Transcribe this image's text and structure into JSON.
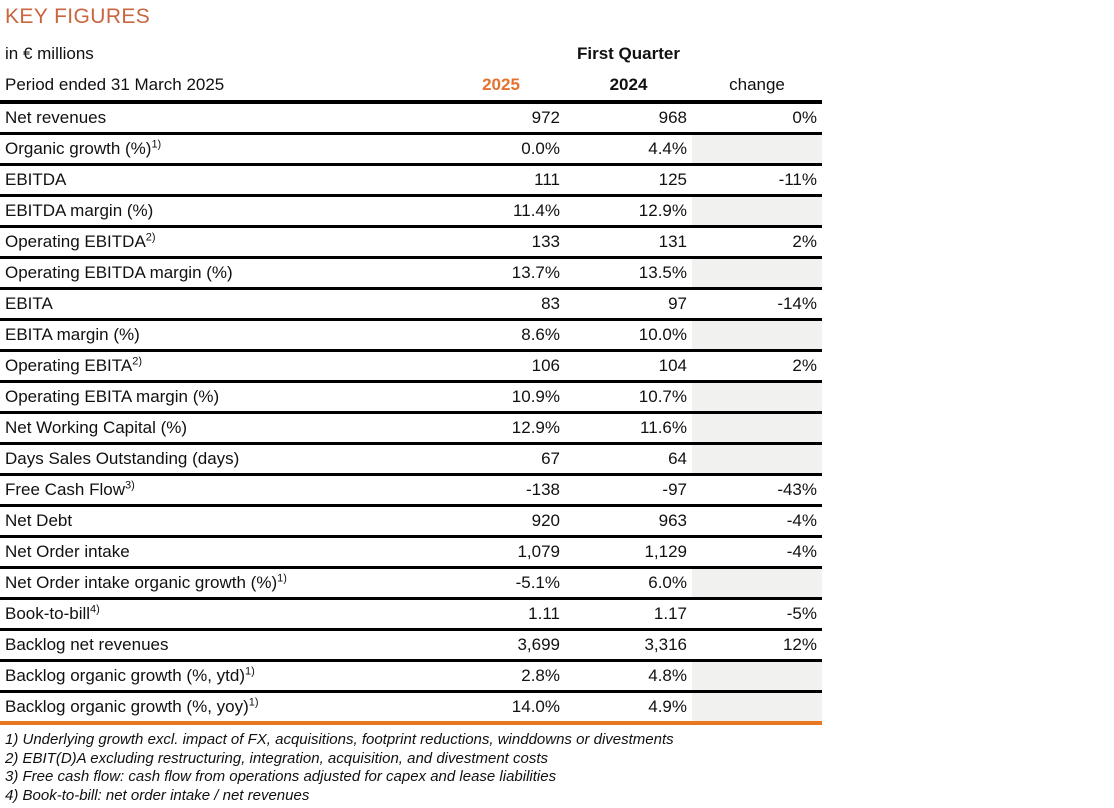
{
  "title": "KEY FIGURES",
  "unit_label": "in € millions",
  "period_label": "Period ended 31 March 2025",
  "quarter_label": "First Quarter",
  "columns": {
    "y2025": "2025",
    "y2024": "2024",
    "change": "change"
  },
  "colors": {
    "title": "#C9653F",
    "year_2025": "#E4722E",
    "accent_line": "#E87722",
    "shaded_cell": "#F1F1EF",
    "text": "#111111",
    "row_border": "#000000"
  },
  "table": {
    "rows": [
      {
        "label": "Net revenues",
        "sup": "",
        "v2025": "972",
        "v2024": "968",
        "change": "0%",
        "shaded": false
      },
      {
        "label": "Organic growth (%)",
        "sup": "1)",
        "v2025": "0.0%",
        "v2024": "4.4%",
        "change": "",
        "shaded": true
      },
      {
        "label": "EBITDA",
        "sup": "",
        "v2025": "111",
        "v2024": "125",
        "change": "-11%",
        "shaded": false
      },
      {
        "label": "EBITDA margin (%)",
        "sup": "",
        "v2025": "11.4%",
        "v2024": "12.9%",
        "change": "",
        "shaded": true
      },
      {
        "label": "Operating EBITDA",
        "sup": "2)",
        "v2025": "133",
        "v2024": "131",
        "change": "2%",
        "shaded": false
      },
      {
        "label": "Operating EBITDA margin (%)",
        "sup": "",
        "v2025": "13.7%",
        "v2024": "13.5%",
        "change": "",
        "shaded": true
      },
      {
        "label": "EBITA",
        "sup": "",
        "v2025": "83",
        "v2024": "97",
        "change": "-14%",
        "shaded": false
      },
      {
        "label": "EBITA margin (%)",
        "sup": "",
        "v2025": "8.6%",
        "v2024": "10.0%",
        "change": "",
        "shaded": true
      },
      {
        "label": "Operating EBITA",
        "sup": "2)",
        "v2025": "106",
        "v2024": "104",
        "change": "2%",
        "shaded": false
      },
      {
        "label": "Operating EBITA margin (%)",
        "sup": "",
        "v2025": "10.9%",
        "v2024": "10.7%",
        "change": "",
        "shaded": true
      },
      {
        "label": "Net Working Capital (%)",
        "sup": "",
        "v2025": "12.9%",
        "v2024": "11.6%",
        "change": "",
        "shaded": true
      },
      {
        "label": "Days Sales Outstanding (days)",
        "sup": "",
        "v2025": "67",
        "v2024": "64",
        "change": "",
        "shaded": true
      },
      {
        "label": "Free Cash Flow",
        "sup": "3)",
        "v2025": "-138",
        "v2024": "-97",
        "change": "-43%",
        "shaded": false
      },
      {
        "label": "Net Debt",
        "sup": "",
        "v2025": "920",
        "v2024": "963",
        "change": "-4%",
        "shaded": false
      },
      {
        "label": "Net Order intake",
        "sup": "",
        "v2025": "1,079",
        "v2024": "1,129",
        "change": "-4%",
        "shaded": false
      },
      {
        "label": "Net Order intake organic growth (%)",
        "sup": "1)",
        "v2025": "-5.1%",
        "v2024": "6.0%",
        "change": "",
        "shaded": true
      },
      {
        "label": "Book-to-bill",
        "sup": "4)",
        "v2025": "1.11",
        "v2024": "1.17",
        "change": "-5%",
        "shaded": false
      },
      {
        "label": "Backlog net revenues",
        "sup": "",
        "v2025": "3,699",
        "v2024": "3,316",
        "change": "12%",
        "shaded": false
      },
      {
        "label": "Backlog organic growth (%, ytd)",
        "sup": "1)",
        "v2025": "2.8%",
        "v2024": "4.8%",
        "change": "",
        "shaded": true
      },
      {
        "label": "Backlog organic growth (%, yoy)",
        "sup": "1)",
        "v2025": "14.0%",
        "v2024": "4.9%",
        "change": "",
        "shaded": true
      }
    ]
  },
  "footnotes": [
    "1) Underlying growth excl. impact of FX, acquisitions, footprint reductions, winddowns or divestments",
    "2) EBIT(D)A excluding restructuring, integration, acquisition, and divestment costs",
    "3) Free cash flow: cash flow from operations adjusted for capex and lease liabilities",
    "4) Book-to-bill: net order intake / net revenues"
  ]
}
